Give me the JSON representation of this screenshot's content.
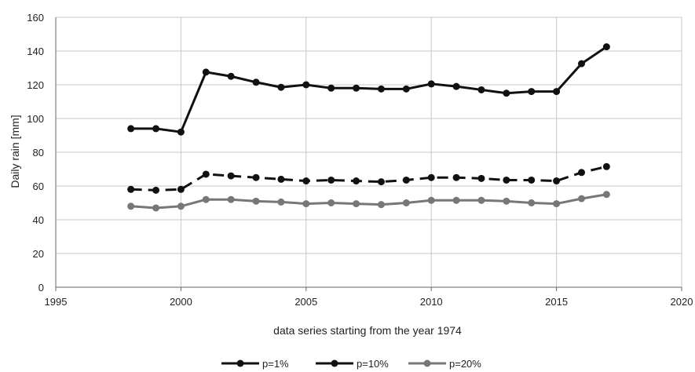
{
  "chart_data": {
    "type": "line",
    "xlabel": "data series starting from the year 1974",
    "ylabel": "Daily rain [mm]",
    "xlim": [
      1995,
      2020
    ],
    "ylim": [
      0,
      160
    ],
    "xticks": [
      "1995",
      "2000",
      "2005",
      "2010",
      "2015",
      "2020"
    ],
    "yticks": [
      "0",
      "20",
      "40",
      "60",
      "80",
      "100",
      "120",
      "140",
      "160"
    ],
    "grid": "on",
    "legend_position": "bottom",
    "x": [
      1998,
      1999,
      2000,
      2001,
      2002,
      2003,
      2004,
      2005,
      2006,
      2007,
      2008,
      2009,
      2010,
      2011,
      2012,
      2013,
      2014,
      2015,
      2016,
      2017
    ],
    "series": [
      {
        "name": "p=1%",
        "color": "#111111",
        "style": "solid",
        "values": [
          94,
          94,
          92,
          127.5,
          125,
          121.5,
          118.5,
          120,
          118,
          118,
          117.5,
          117.5,
          120.5,
          119,
          117,
          115,
          116,
          116,
          132.5,
          142.5
        ]
      },
      {
        "name": "p=10%",
        "color": "#111111",
        "style": "dashed",
        "values": [
          58,
          57.5,
          58,
          67,
          66,
          65,
          64,
          63,
          63.5,
          63,
          62.5,
          63.5,
          65,
          65,
          64.5,
          63.5,
          63.5,
          63,
          68,
          71.5
        ]
      },
      {
        "name": "p=20%",
        "color": "#777777",
        "style": "solid",
        "values": [
          48,
          47,
          48,
          52,
          52,
          51,
          50.5,
          49.5,
          50,
          49.5,
          49,
          50,
          51.5,
          51.5,
          51.5,
          51,
          50,
          49.5,
          52.5,
          55
        ]
      }
    ]
  }
}
